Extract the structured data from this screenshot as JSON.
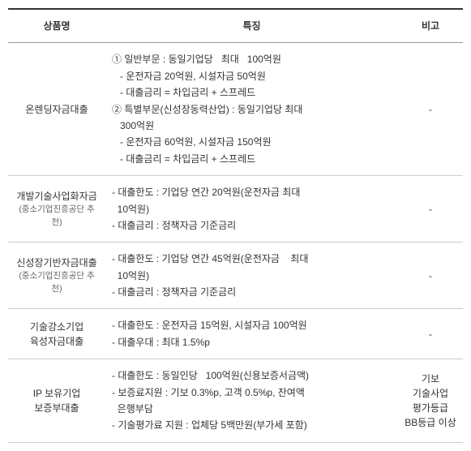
{
  "table": {
    "headers": {
      "name": "상품명",
      "feature": "특징",
      "note": "비고"
    },
    "colWidths": {
      "name": 120,
      "feature": "auto",
      "note": 80
    },
    "colors": {
      "text": "#333333",
      "subText": "#666666",
      "borderTop": "#333333",
      "borderHead": "#999999",
      "borderRow": "#cccccc",
      "background": "#ffffff"
    },
    "fonts": {
      "base": 12,
      "sub": 10.5,
      "lineHeight": 1.7
    },
    "rows": [
      {
        "nameMain": "온렌딩자금대출",
        "nameSub": "",
        "featureLines": [
          "① 일반부문 : 동일기업당   최대   100억원",
          "   - 운전자금 20억원, 시설자금 50억원",
          "   - 대출금리 = 차입금리 + 스프레드",
          "② 특별부문(신성장동력산업) : 동일기업당 최대",
          "   300억원",
          "   - 운전자금 60억원, 시설자금 150억원",
          "   - 대출금리 = 차입금리 + 스프레드"
        ],
        "note": "-"
      },
      {
        "nameMain": "개발기술사업화자금",
        "nameSub": "(중소기업진흥공단  추천)",
        "featureLines": [
          "- 대출한도 : 기업당 연간 20억원(운전자금 최대",
          "  10억원)",
          "- 대출금리 : 정책자금 기준금리"
        ],
        "note": "-"
      },
      {
        "nameMain": "신성장기반자금대출",
        "nameSub": "(중소기업진흥공단  추천)",
        "featureLines": [
          "- 대출한도 : 기업당 연간 45억원(운전자금    최대",
          "  10억원)",
          "- 대출금리 : 정책자금 기준금리"
        ],
        "note": "-"
      },
      {
        "nameMain": "기술강소기업\n육성자금대출",
        "nameSub": "",
        "featureLines": [
          "- 대출한도 : 운전자금 15억원, 시설자금 100억원",
          "- 대출우대 : 최대 1.5%p"
        ],
        "note": "-"
      },
      {
        "nameMain": "IP 보유기업\n보증부대출",
        "nameSub": "",
        "featureLines": [
          "- 대출한도 : 동일인당   100억원(신용보증서금액)",
          "- 보증료지원 : 기보 0.3%p, 고객 0.5%p, 잔여액",
          "  은행부담",
          "- 기술평가료 지원 : 업체당 5백만원(부가세 포함)"
        ],
        "note": "기보\n기술사업\n평가등급\nBB등급 이상"
      }
    ]
  }
}
